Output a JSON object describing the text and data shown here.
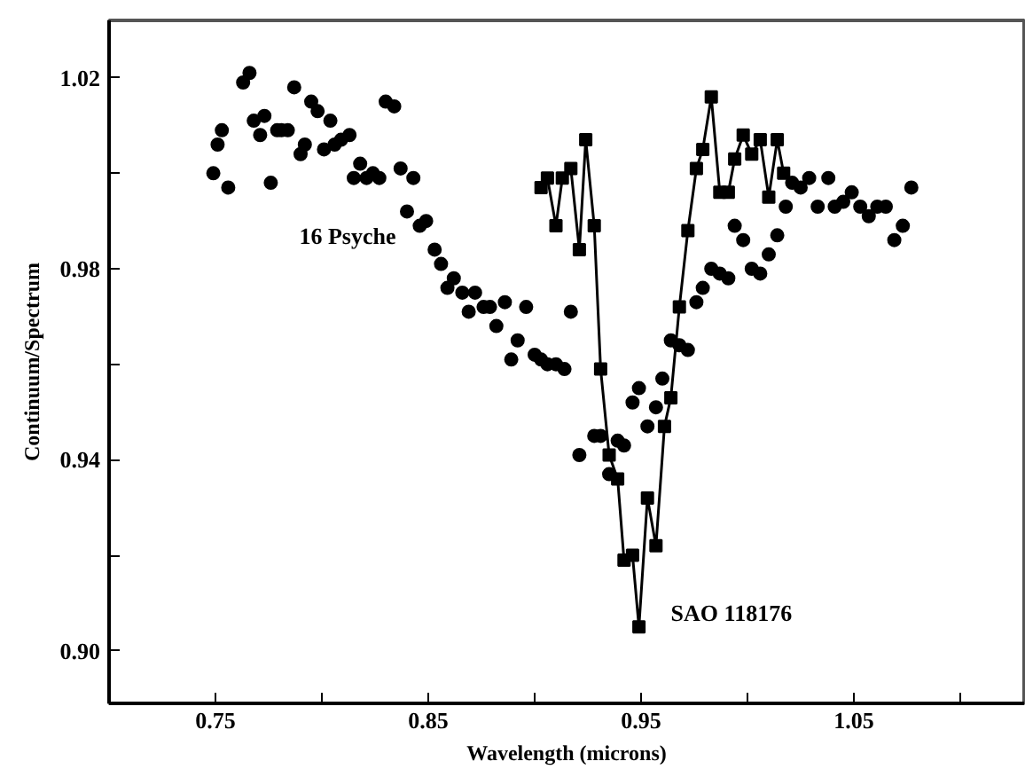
{
  "chart_data": {
    "type": "scatter",
    "xlabel": "Wavelength (microns)",
    "ylabel": "Continuum/Spectrum",
    "xlim": [
      0.7,
      1.13
    ],
    "ylim": [
      0.889,
      1.032
    ],
    "xticks": [
      0.75,
      {
        "value": 0.8,
        "label": null
      },
      0.85,
      {
        "value": 0.9,
        "label": null
      },
      0.95,
      {
        "value": 1.0,
        "label": null
      },
      1.05,
      {
        "value": 1.1,
        "label": null
      }
    ],
    "yticks": [
      {
        "value": 0.9,
        "label": "0.90"
      },
      {
        "value": 0.92,
        "label": null
      },
      0.94,
      {
        "value": 0.96,
        "label": null
      },
      0.98,
      {
        "value": 1.0,
        "label": null
      },
      1.02
    ],
    "grid": false,
    "series": [
      {
        "name": "16 Psyche",
        "marker": "circle",
        "color": "#000000",
        "x": [
          0.749,
          0.751,
          0.753,
          0.756,
          0.763,
          0.766,
          0.768,
          0.771,
          0.773,
          0.776,
          0.779,
          0.781,
          0.784,
          0.787,
          0.79,
          0.792,
          0.795,
          0.798,
          0.801,
          0.804,
          0.806,
          0.809,
          0.813,
          0.815,
          0.818,
          0.821,
          0.824,
          0.827,
          0.83,
          0.834,
          0.837,
          0.84,
          0.843,
          0.846,
          0.849,
          0.853,
          0.856,
          0.859,
          0.862,
          0.866,
          0.869,
          0.872,
          0.876,
          0.879,
          0.882,
          0.886,
          0.889,
          0.892,
          0.896,
          0.9,
          0.903,
          0.906,
          0.91,
          0.914,
          0.917,
          0.921,
          0.928,
          0.931,
          0.935,
          0.939,
          0.942,
          0.946,
          0.949,
          0.953,
          0.957,
          0.96,
          0.964,
          0.968,
          0.972,
          0.976,
          0.979,
          0.983,
          0.987,
          0.991,
          0.994,
          0.998,
          1.002,
          1.006,
          1.01,
          1.014,
          1.018,
          1.021,
          1.025,
          1.029,
          1.033,
          1.038,
          1.041,
          1.045,
          1.049,
          1.053,
          1.057,
          1.061,
          1.065,
          1.069,
          1.073,
          1.077
        ],
        "values": [
          1.0,
          1.006,
          1.009,
          0.997,
          1.019,
          1.021,
          1.011,
          1.008,
          1.012,
          0.998,
          1.009,
          1.009,
          1.009,
          1.018,
          1.004,
          1.006,
          1.015,
          1.013,
          1.005,
          1.011,
          1.006,
          1.007,
          1.008,
          0.999,
          1.002,
          0.999,
          1.0,
          0.999,
          1.015,
          1.014,
          1.001,
          0.992,
          0.999,
          0.989,
          0.99,
          0.984,
          0.981,
          0.976,
          0.978,
          0.975,
          0.971,
          0.975,
          0.972,
          0.972,
          0.968,
          0.973,
          0.961,
          0.965,
          0.972,
          0.962,
          0.961,
          0.96,
          0.96,
          0.959,
          0.971,
          0.941,
          0.945,
          0.945,
          0.937,
          0.944,
          0.943,
          0.952,
          0.955,
          0.947,
          0.951,
          0.957,
          0.965,
          0.964,
          0.963,
          0.973,
          0.976,
          0.98,
          0.979,
          0.978,
          0.989,
          0.986,
          0.98,
          0.979,
          0.983,
          0.987,
          0.993,
          0.998,
          0.997,
          0.999,
          0.993,
          0.999,
          0.993,
          0.994,
          0.996,
          0.993,
          0.991,
          0.993,
          0.993,
          0.986,
          0.989,
          0.997
        ]
      },
      {
        "name": "SAO 118176",
        "type": "line",
        "marker": "square",
        "color": "#000000",
        "x": [
          0.903,
          0.906,
          0.91,
          0.913,
          0.917,
          0.921,
          0.924,
          0.928,
          0.931,
          0.935,
          0.939,
          0.942,
          0.946,
          0.949,
          0.953,
          0.957,
          0.961,
          0.964,
          0.968,
          0.972,
          0.976,
          0.979,
          0.983,
          0.987,
          0.991,
          0.994,
          0.998,
          1.002,
          1.006,
          1.01,
          1.014,
          1.017
        ],
        "values": [
          0.997,
          0.999,
          0.989,
          0.999,
          1.001,
          0.984,
          1.007,
          0.989,
          0.959,
          0.941,
          0.936,
          0.919,
          0.92,
          0.905,
          0.932,
          0.922,
          0.947,
          0.953,
          0.972,
          0.988,
          1.001,
          1.005,
          1.016,
          0.996,
          0.996,
          1.003,
          1.008,
          1.004,
          1.007,
          0.995,
          1.007,
          1.0
        ]
      }
    ]
  }
}
